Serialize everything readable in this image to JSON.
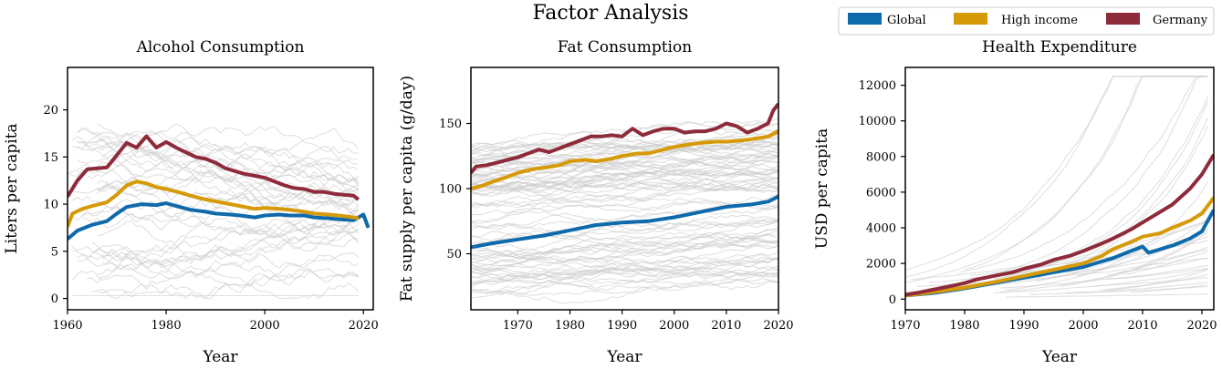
{
  "figure": {
    "suptitle": "Factor Analysis"
  },
  "legend": {
    "placement": "top-right",
    "items": [
      {
        "label": "Global",
        "color": "#0e6aab"
      },
      {
        "label": "High income",
        "color": "#d69a08"
      },
      {
        "label": "Germany",
        "color": "#8e2b3b"
      }
    ]
  },
  "colors": {
    "background_lines": "#c9c9c9",
    "axes": "#000000"
  },
  "chart_data": [
    {
      "type": "line",
      "title": "Alcohol Consumption",
      "xlabel": "Year",
      "ylabel": "Liters per capita",
      "xlim": [
        1960,
        2022
      ],
      "ylim": [
        -1.2,
        24.5
      ],
      "xticks": [
        1960,
        1980,
        2000,
        2020
      ],
      "yticks": [
        0,
        5,
        10,
        15,
        20
      ],
      "grid": false,
      "background_series": "many grey per-country lines",
      "series": [
        {
          "name": "Global",
          "x": [
            1960,
            1962,
            1965,
            1968,
            1970,
            1972,
            1975,
            1978,
            1980,
            1982,
            1985,
            1988,
            1990,
            1993,
            1995,
            1998,
            2000,
            2003,
            2005,
            2008,
            2010,
            2013,
            2015,
            2018,
            2020,
            2021
          ],
          "values": [
            6.3,
            7.2,
            7.8,
            8.2,
            9.0,
            9.7,
            10.0,
            9.9,
            10.1,
            9.8,
            9.4,
            9.2,
            9.0,
            8.9,
            8.8,
            8.6,
            8.8,
            8.9,
            8.8,
            8.8,
            8.6,
            8.5,
            8.4,
            8.3,
            8.9,
            7.5
          ]
        },
        {
          "name": "High income",
          "x": [
            1960,
            1961,
            1963,
            1965,
            1968,
            1970,
            1972,
            1974,
            1976,
            1978,
            1980,
            1983,
            1985,
            1988,
            1990,
            1993,
            1995,
            1998,
            2000,
            2003,
            2005,
            2008,
            2010,
            2013,
            2015,
            2018,
            2019
          ],
          "values": [
            7.6,
            9.0,
            9.5,
            9.8,
            10.2,
            11.0,
            12.0,
            12.4,
            12.2,
            11.8,
            11.6,
            11.2,
            10.9,
            10.5,
            10.3,
            10.0,
            9.8,
            9.5,
            9.6,
            9.5,
            9.4,
            9.2,
            9.0,
            8.9,
            8.8,
            8.6,
            8.5
          ]
        },
        {
          "name": "Germany",
          "x": [
            1960,
            1962,
            1964,
            1966,
            1968,
            1970,
            1972,
            1974,
            1976,
            1978,
            1980,
            1982,
            1984,
            1986,
            1988,
            1990,
            1992,
            1994,
            1996,
            1998,
            2000,
            2002,
            2004,
            2006,
            2008,
            2010,
            2012,
            2014,
            2016,
            2018,
            2019
          ],
          "values": [
            10.8,
            12.5,
            13.7,
            13.8,
            13.9,
            15.2,
            16.5,
            16.0,
            17.2,
            16.0,
            16.6,
            16.0,
            15.5,
            15.0,
            14.8,
            14.4,
            13.8,
            13.5,
            13.2,
            13.0,
            12.8,
            12.4,
            12.0,
            11.7,
            11.6,
            11.3,
            11.3,
            11.1,
            11.0,
            10.9,
            10.5
          ]
        }
      ]
    },
    {
      "type": "line",
      "title": "Fat Consumption",
      "xlabel": "Year",
      "ylabel": "Fat supply per capita (g/day)",
      "xlim": [
        1961,
        2020
      ],
      "ylim": [
        7,
        193
      ],
      "xticks": [
        1970,
        1980,
        1990,
        2000,
        2010,
        2020
      ],
      "yticks": [
        50,
        100,
        150
      ],
      "grid": false,
      "background_series": "many grey per-country lines",
      "series": [
        {
          "name": "Global",
          "x": [
            1961,
            1965,
            1970,
            1975,
            1980,
            1985,
            1990,
            1995,
            2000,
            2005,
            2010,
            2015,
            2018,
            2020
          ],
          "values": [
            55,
            58,
            61,
            64,
            68,
            72,
            74,
            75,
            78,
            82,
            86,
            88,
            90,
            94
          ]
        },
        {
          "name": "High income",
          "x": [
            1961,
            1963,
            1965,
            1968,
            1970,
            1973,
            1975,
            1978,
            1980,
            1983,
            1985,
            1988,
            1990,
            1993,
            1995,
            1998,
            2000,
            2003,
            2005,
            2008,
            2010,
            2013,
            2015,
            2018,
            2020
          ],
          "values": [
            100,
            102,
            105,
            109,
            112,
            115,
            116,
            118,
            121,
            122,
            121,
            123,
            125,
            127,
            127,
            130,
            132,
            134,
            135,
            136,
            136,
            137,
            138,
            140,
            144
          ]
        },
        {
          "name": "Germany",
          "x": [
            1961,
            1962,
            1964,
            1966,
            1968,
            1970,
            1972,
            1974,
            1976,
            1978,
            1980,
            1982,
            1984,
            1986,
            1988,
            1990,
            1992,
            1994,
            1996,
            1998,
            2000,
            2002,
            2004,
            2006,
            2008,
            2010,
            2012,
            2014,
            2016,
            2018,
            2019,
            2020
          ],
          "values": [
            112,
            117,
            118,
            120,
            122,
            124,
            127,
            130,
            128,
            131,
            134,
            137,
            140,
            140,
            141,
            140,
            146,
            141,
            144,
            146,
            146,
            143,
            144,
            144,
            146,
            150,
            148,
            143,
            146,
            150,
            160,
            165
          ]
        }
      ]
    },
    {
      "type": "line",
      "title": "Health Expenditure",
      "xlabel": "Year",
      "ylabel": "USD per capita",
      "xlim": [
        1970,
        2022
      ],
      "ylim": [
        -600,
        13000
      ],
      "xticks": [
        1970,
        1980,
        1990,
        2000,
        2010,
        2020
      ],
      "yticks": [
        0,
        2000,
        4000,
        6000,
        8000,
        10000,
        12000
      ],
      "grid": false,
      "background_series": "many grey per-country lines",
      "series": [
        {
          "name": "Global",
          "x": [
            1970,
            1975,
            1980,
            1985,
            1990,
            1995,
            2000,
            2002,
            2005,
            2008,
            2010,
            2011,
            2013,
            2015,
            2018,
            2020,
            2022
          ],
          "values": [
            200,
            350,
            600,
            900,
            1200,
            1500,
            1800,
            2000,
            2300,
            2700,
            2950,
            2600,
            2800,
            3000,
            3400,
            3800,
            5000
          ]
        },
        {
          "name": "High income",
          "x": [
            1970,
            1975,
            1980,
            1985,
            1990,
            1995,
            2000,
            2003,
            2005,
            2008,
            2010,
            2013,
            2015,
            2018,
            2020,
            2022
          ],
          "values": [
            200,
            400,
            650,
            950,
            1300,
            1650,
            2000,
            2400,
            2800,
            3200,
            3500,
            3700,
            4000,
            4400,
            4800,
            5700
          ]
        },
        {
          "name": "Germany",
          "x": [
            1970,
            1972,
            1975,
            1978,
            1980,
            1982,
            1985,
            1988,
            1990,
            1993,
            1995,
            1998,
            2000,
            2003,
            2005,
            2008,
            2010,
            2012,
            2015,
            2018,
            2020,
            2022
          ],
          "values": [
            250,
            350,
            550,
            750,
            900,
            1100,
            1300,
            1500,
            1700,
            1950,
            2200,
            2450,
            2700,
            3100,
            3400,
            3900,
            4300,
            4700,
            5300,
            6200,
            7000,
            8100
          ]
        }
      ]
    }
  ]
}
